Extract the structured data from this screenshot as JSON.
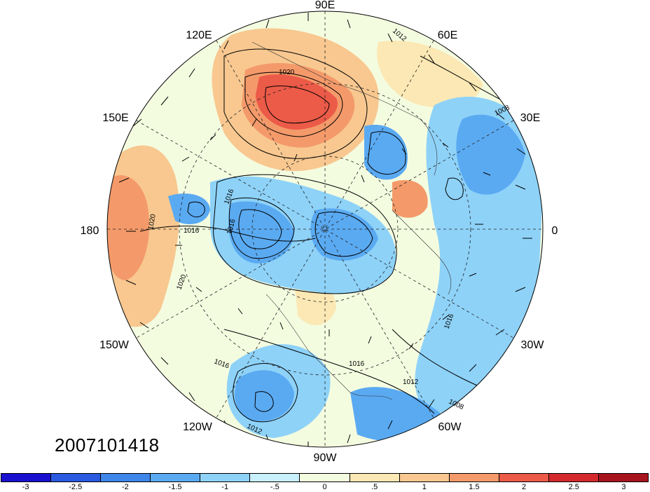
{
  "map": {
    "projection": "north-polar-stereographic",
    "longitude_labels": {
      "top": "90E",
      "top_left": "120E",
      "top_right": "60E",
      "upper_left": "150E",
      "upper_right": "30E",
      "left": "180",
      "right": "0",
      "lower_left": "150W",
      "lower_right": "30W",
      "bottom_left": "120W",
      "bottom_right": "60W",
      "bottom": "90W"
    },
    "contour_labels": [
      "1012",
      "1020",
      "1008",
      "1016",
      "1016",
      "1020",
      "1020",
      "1016",
      "1016",
      "1016",
      "1012",
      "1012",
      "1008",
      "1016"
    ],
    "timestamp": "2007101418"
  },
  "colorbar": {
    "ticks": [
      "-3",
      "-2.5",
      "-2",
      "-1.5",
      "-1",
      "-.5",
      "0",
      ".5",
      "1",
      "1.5",
      "2",
      "2.5",
      "3"
    ],
    "colors": [
      "#1a10d0",
      "#2a5ae0",
      "#3e86ea",
      "#5aaaf2",
      "#8ed2f8",
      "#c8f0fc",
      "#f4fce0",
      "#fbe8b4",
      "#f8c890",
      "#f49a6a",
      "#ec5a48",
      "#d42a2e",
      "#a8141e"
    ]
  }
}
